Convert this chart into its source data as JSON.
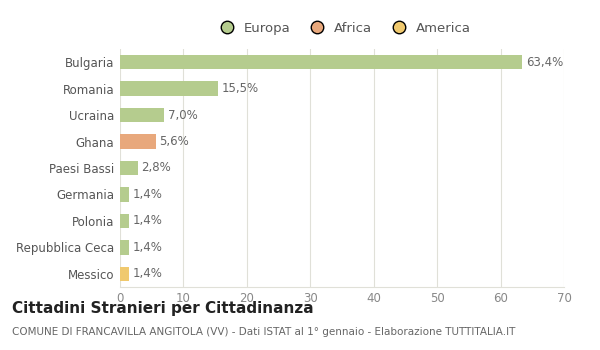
{
  "categories": [
    "Bulgaria",
    "Romania",
    "Ucraina",
    "Ghana",
    "Paesi Bassi",
    "Germania",
    "Polonia",
    "Repubblica Ceca",
    "Messico"
  ],
  "values": [
    63.4,
    15.5,
    7.0,
    5.6,
    2.8,
    1.4,
    1.4,
    1.4,
    1.4
  ],
  "labels": [
    "63,4%",
    "15,5%",
    "7,0%",
    "5,6%",
    "2,8%",
    "1,4%",
    "1,4%",
    "1,4%",
    "1,4%"
  ],
  "colors": [
    "#b5cc8e",
    "#b5cc8e",
    "#b5cc8e",
    "#e8a87c",
    "#b5cc8e",
    "#b5cc8e",
    "#b5cc8e",
    "#b5cc8e",
    "#f0c96e"
  ],
  "legend_labels": [
    "Europa",
    "Africa",
    "America"
  ],
  "legend_colors": [
    "#b5cc8e",
    "#e8a87c",
    "#f0c96e"
  ],
  "title": "Cittadini Stranieri per Cittadinanza",
  "subtitle": "COMUNE DI FRANCAVILLA ANGITOLA (VV) - Dati ISTAT al 1° gennaio - Elaborazione TUTTITALIA.IT",
  "xlim": [
    0,
    70
  ],
  "xticks": [
    0,
    10,
    20,
    30,
    40,
    50,
    60,
    70
  ],
  "bg_color": "#ffffff",
  "plot_bg_color": "#f9f9f6",
  "grid_color": "#e0e0d8",
  "bar_height": 0.55,
  "title_fontsize": 11,
  "subtitle_fontsize": 7.5,
  "label_fontsize": 8.5,
  "ytick_fontsize": 8.5,
  "xtick_fontsize": 8.5,
  "legend_fontsize": 9.5
}
